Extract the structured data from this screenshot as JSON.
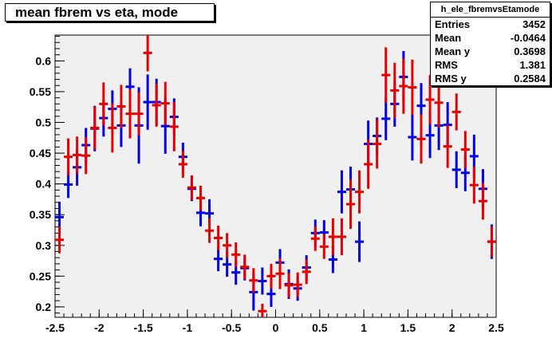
{
  "title": "mean fbrem vs eta, mode",
  "stats": {
    "name": "h_ele_fbremvsEtamode",
    "rows": [
      {
        "label": "Entries",
        "value": "3452"
      },
      {
        "label": "Mean",
        "value": "-0.0464"
      },
      {
        "label": "Mean y",
        "value": "0.3698"
      },
      {
        "label": "RMS",
        "value": "1.381"
      },
      {
        "label": "RMS y",
        "value": "0.2584"
      }
    ]
  },
  "chart_data": {
    "type": "scatter",
    "title": "mean fbrem vs eta, mode",
    "xlabel": "",
    "ylabel": "",
    "xlim": [
      -2.5,
      2.5
    ],
    "ylim": [
      0.183,
      0.642
    ],
    "x_ticks": [
      "-2.5",
      "-2",
      "-1.5",
      "-1",
      "-0.5",
      "0",
      "0.5",
      "1",
      "1.5",
      "2",
      "2.5"
    ],
    "y_ticks": [
      "0.2",
      "0.25",
      "0.3",
      "0.35",
      "0.4",
      "0.45",
      "0.5",
      "0.55",
      "0.6"
    ],
    "x_tick_values": [
      -2.5,
      -2,
      -1.5,
      -1,
      -0.5,
      0,
      0.5,
      1,
      1.5,
      2,
      2.5
    ],
    "y_tick_values": [
      0.2,
      0.25,
      0.3,
      0.35,
      0.4,
      0.45,
      0.5,
      0.55,
      0.6
    ],
    "bin_half_width": 0.05,
    "colors": {
      "blue": "#0000e6",
      "red": "#e60000",
      "frame_bg": "#f0f0f0"
    },
    "series": [
      {
        "color": "#0000e6",
        "points": [
          {
            "x": -2.45,
            "y": 0.346,
            "err": 0.025
          },
          {
            "x": -2.35,
            "y": 0.399,
            "err": 0.022
          },
          {
            "x": -2.25,
            "y": 0.427,
            "err": 0.03
          },
          {
            "x": -2.15,
            "y": 0.463,
            "err": 0.028
          },
          {
            "x": -2.05,
            "y": 0.49,
            "err": 0.037
          },
          {
            "x": -1.95,
            "y": 0.507,
            "err": 0.03
          },
          {
            "x": -1.85,
            "y": 0.522,
            "err": 0.03
          },
          {
            "x": -1.75,
            "y": 0.495,
            "err": 0.035
          },
          {
            "x": -1.65,
            "y": 0.558,
            "err": 0.03
          },
          {
            "x": -1.55,
            "y": 0.495,
            "err": 0.062
          },
          {
            "x": -1.45,
            "y": 0.533,
            "err": 0.045
          },
          {
            "x": -1.35,
            "y": 0.533,
            "err": 0.038
          },
          {
            "x": -1.25,
            "y": 0.494,
            "err": 0.045
          },
          {
            "x": -1.15,
            "y": 0.509,
            "err": 0.03
          },
          {
            "x": -1.05,
            "y": 0.444,
            "err": 0.023
          },
          {
            "x": -0.95,
            "y": 0.392,
            "err": 0.02
          },
          {
            "x": -0.85,
            "y": 0.353,
            "err": 0.022
          },
          {
            "x": -0.75,
            "y": 0.352,
            "err": 0.023
          },
          {
            "x": -0.65,
            "y": 0.278,
            "err": 0.02
          },
          {
            "x": -0.55,
            "y": 0.269,
            "err": 0.02
          },
          {
            "x": -0.45,
            "y": 0.256,
            "err": 0.02
          },
          {
            "x": -0.35,
            "y": 0.263,
            "err": 0.02
          },
          {
            "x": -0.25,
            "y": 0.224,
            "err": 0.03
          },
          {
            "x": -0.15,
            "y": 0.242,
            "err": 0.022
          },
          {
            "x": -0.05,
            "y": 0.221,
            "err": 0.021
          },
          {
            "x": 0.05,
            "y": 0.272,
            "err": 0.022
          },
          {
            "x": 0.15,
            "y": 0.237,
            "err": 0.024
          },
          {
            "x": 0.25,
            "y": 0.23,
            "err": 0.02
          },
          {
            "x": 0.35,
            "y": 0.264,
            "err": 0.02
          },
          {
            "x": 0.45,
            "y": 0.32,
            "err": 0.022
          },
          {
            "x": 0.55,
            "y": 0.321,
            "err": 0.02
          },
          {
            "x": 0.65,
            "y": 0.277,
            "err": 0.022
          },
          {
            "x": 0.75,
            "y": 0.387,
            "err": 0.035
          },
          {
            "x": 0.85,
            "y": 0.391,
            "err": 0.037
          },
          {
            "x": 0.95,
            "y": 0.306,
            "err": 0.033
          },
          {
            "x": 1.05,
            "y": 0.465,
            "err": 0.038
          },
          {
            "x": 1.15,
            "y": 0.478,
            "err": 0.03
          },
          {
            "x": 1.25,
            "y": 0.506,
            "err": 0.035
          },
          {
            "x": 1.35,
            "y": 0.53,
            "err": 0.037
          },
          {
            "x": 1.45,
            "y": 0.574,
            "err": 0.042
          },
          {
            "x": 1.55,
            "y": 0.476,
            "err": 0.038
          },
          {
            "x": 1.65,
            "y": 0.527,
            "err": 0.037
          },
          {
            "x": 1.75,
            "y": 0.479,
            "err": 0.037
          },
          {
            "x": 1.85,
            "y": 0.495,
            "err": 0.04
          },
          {
            "x": 1.95,
            "y": 0.496,
            "err": 0.037
          },
          {
            "x": 2.05,
            "y": 0.423,
            "err": 0.03
          },
          {
            "x": 2.15,
            "y": 0.418,
            "err": 0.03
          },
          {
            "x": 2.25,
            "y": 0.445,
            "err": 0.035
          },
          {
            "x": 2.35,
            "y": 0.392,
            "err": 0.032
          },
          {
            "x": 2.45,
            "y": 0.306,
            "err": 0.028
          }
        ]
      },
      {
        "color": "#e60000",
        "points": [
          {
            "x": -2.45,
            "y": 0.309,
            "err": 0.022
          },
          {
            "x": -2.35,
            "y": 0.444,
            "err": 0.03
          },
          {
            "x": -2.25,
            "y": 0.447,
            "err": 0.03
          },
          {
            "x": -2.15,
            "y": 0.446,
            "err": 0.03
          },
          {
            "x": -2.05,
            "y": 0.491,
            "err": 0.035
          },
          {
            "x": -1.95,
            "y": 0.53,
            "err": 0.035
          },
          {
            "x": -1.85,
            "y": 0.491,
            "err": 0.04
          },
          {
            "x": -1.75,
            "y": 0.526,
            "err": 0.035
          },
          {
            "x": -1.65,
            "y": 0.514,
            "err": 0.04
          },
          {
            "x": -1.55,
            "y": 0.514,
            "err": 0.035
          },
          {
            "x": -1.45,
            "y": 0.613,
            "err": 0.03
          },
          {
            "x": -1.35,
            "y": 0.528,
            "err": 0.035
          },
          {
            "x": -1.25,
            "y": 0.531,
            "err": 0.035
          },
          {
            "x": -1.15,
            "y": 0.493,
            "err": 0.04
          },
          {
            "x": -1.05,
            "y": 0.432,
            "err": 0.022
          },
          {
            "x": -0.95,
            "y": 0.394,
            "err": 0.02
          },
          {
            "x": -0.85,
            "y": 0.377,
            "err": 0.02
          },
          {
            "x": -0.75,
            "y": 0.324,
            "err": 0.02
          },
          {
            "x": -0.65,
            "y": 0.312,
            "err": 0.02
          },
          {
            "x": -0.55,
            "y": 0.3,
            "err": 0.02
          },
          {
            "x": -0.45,
            "y": 0.285,
            "err": 0.02
          },
          {
            "x": -0.35,
            "y": 0.265,
            "err": 0.02
          },
          {
            "x": -0.25,
            "y": 0.243,
            "err": 0.02
          },
          {
            "x": -0.15,
            "y": 0.193,
            "err": 0.012
          },
          {
            "x": -0.05,
            "y": 0.25,
            "err": 0.02
          },
          {
            "x": 0.05,
            "y": 0.254,
            "err": 0.025
          },
          {
            "x": 0.15,
            "y": 0.235,
            "err": 0.02
          },
          {
            "x": 0.25,
            "y": 0.236,
            "err": 0.02
          },
          {
            "x": 0.35,
            "y": 0.257,
            "err": 0.02
          },
          {
            "x": 0.45,
            "y": 0.311,
            "err": 0.02
          },
          {
            "x": 0.55,
            "y": 0.298,
            "err": 0.02
          },
          {
            "x": 0.65,
            "y": 0.314,
            "err": 0.03
          },
          {
            "x": 0.75,
            "y": 0.314,
            "err": 0.03
          },
          {
            "x": 0.85,
            "y": 0.367,
            "err": 0.04
          },
          {
            "x": 0.95,
            "y": 0.387,
            "err": 0.035
          },
          {
            "x": 1.05,
            "y": 0.432,
            "err": 0.04
          },
          {
            "x": 1.15,
            "y": 0.465,
            "err": 0.04
          },
          {
            "x": 1.25,
            "y": 0.577,
            "err": 0.045
          },
          {
            "x": 1.35,
            "y": 0.552,
            "err": 0.045
          },
          {
            "x": 1.45,
            "y": 0.559,
            "err": 0.045
          },
          {
            "x": 1.55,
            "y": 0.557,
            "err": 0.045
          },
          {
            "x": 1.65,
            "y": 0.473,
            "err": 0.04
          },
          {
            "x": 1.75,
            "y": 0.537,
            "err": 0.04
          },
          {
            "x": 1.85,
            "y": 0.532,
            "err": 0.04
          },
          {
            "x": 1.95,
            "y": 0.461,
            "err": 0.035
          },
          {
            "x": 2.05,
            "y": 0.517,
            "err": 0.03
          },
          {
            "x": 2.15,
            "y": 0.456,
            "err": 0.03
          },
          {
            "x": 2.25,
            "y": 0.398,
            "err": 0.03
          },
          {
            "x": 2.35,
            "y": 0.372,
            "err": 0.03
          },
          {
            "x": 2.45,
            "y": 0.306,
            "err": 0.025
          }
        ]
      }
    ]
  }
}
